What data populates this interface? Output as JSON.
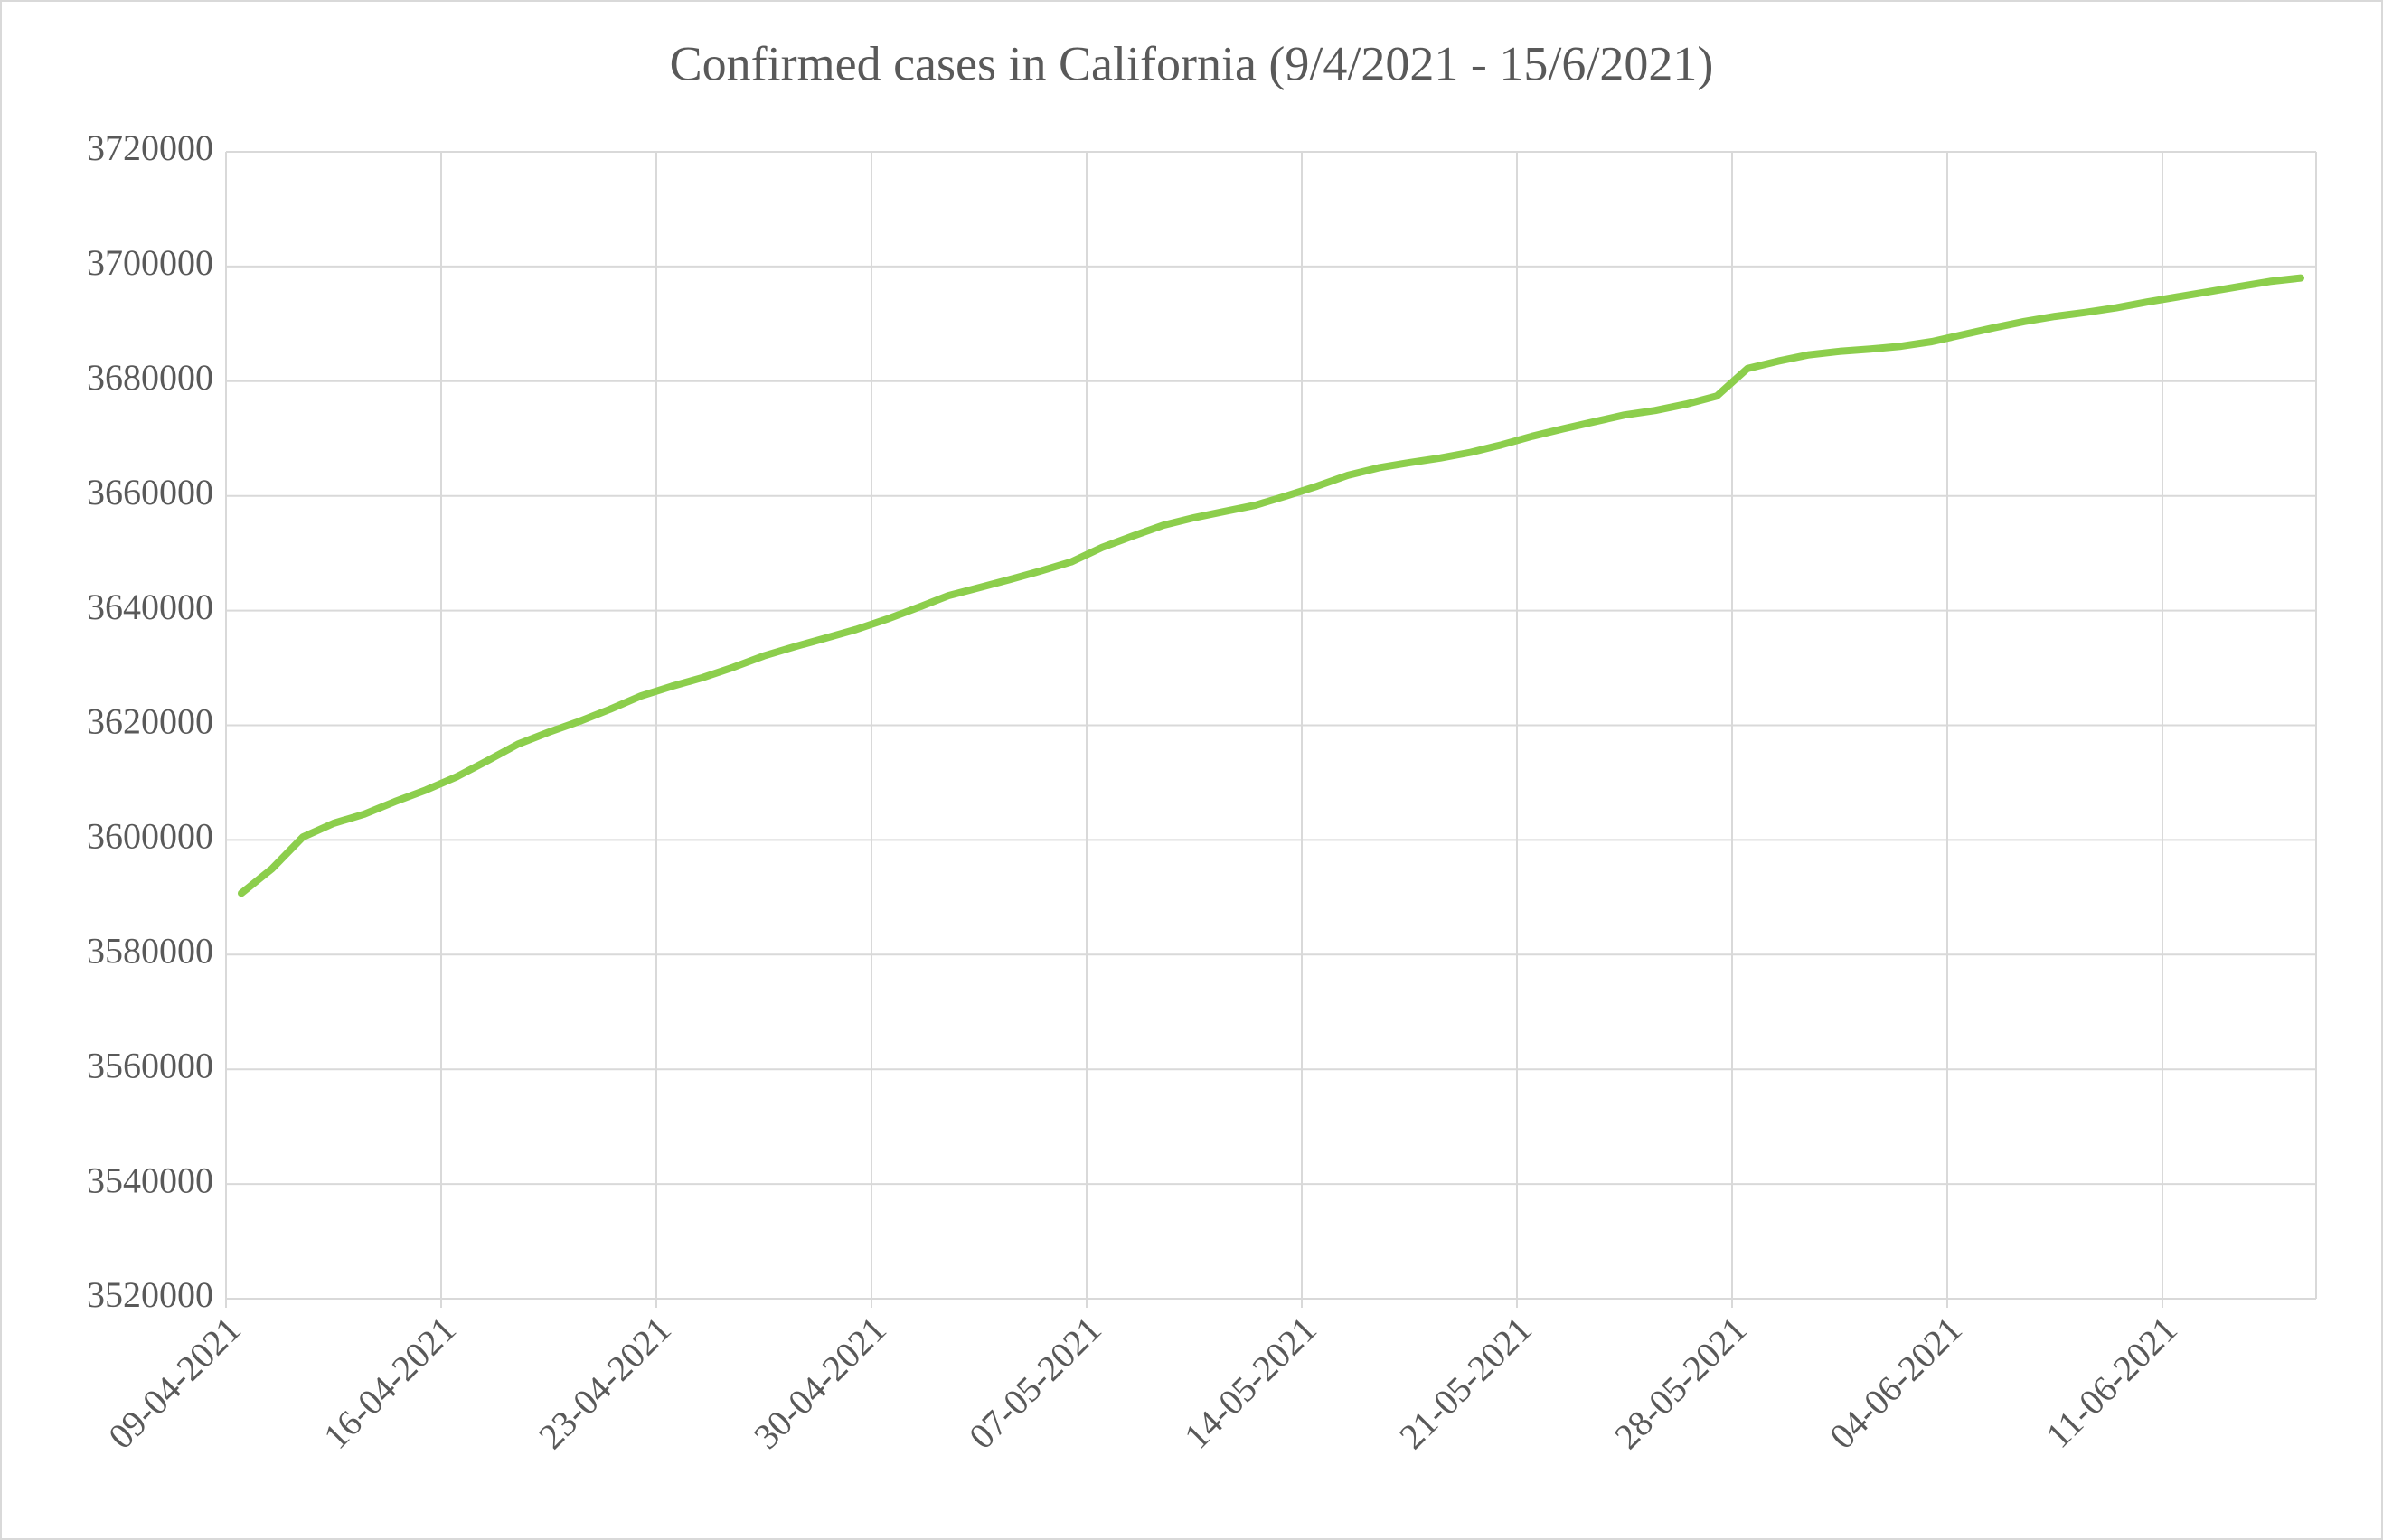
{
  "chart_data": {
    "type": "line",
    "title": "Confirmed cases in California (9/4/2021 - 15/6/2021)",
    "categories": [
      "09-04-2021",
      null,
      null,
      null,
      null,
      null,
      null,
      "16-04-2021",
      null,
      null,
      null,
      null,
      null,
      null,
      "23-04-2021",
      null,
      null,
      null,
      null,
      null,
      null,
      "30-04-2021",
      null,
      null,
      null,
      null,
      null,
      null,
      "07-05-2021",
      null,
      null,
      null,
      null,
      null,
      null,
      "14-05-2021",
      null,
      null,
      null,
      null,
      null,
      null,
      "21-05-2021",
      null,
      null,
      null,
      null,
      null,
      null,
      "28-05-2021",
      null,
      null,
      null,
      null,
      null,
      null,
      "04-06-2021",
      null,
      null,
      null,
      null,
      null,
      null,
      "11-06-2021",
      null,
      null,
      null,
      null
    ],
    "values": [
      3590700,
      3595000,
      3600500,
      3602900,
      3604500,
      3606700,
      3608700,
      3611000,
      3613800,
      3616700,
      3618800,
      3620700,
      3622800,
      3625100,
      3626800,
      3628300,
      3630100,
      3632100,
      3633700,
      3635200,
      3636700,
      3638500,
      3640500,
      3642600,
      3644000,
      3645400,
      3646900,
      3648500,
      3651000,
      3653000,
      3654900,
      3656200,
      3657300,
      3658400,
      3660000,
      3661700,
      3663600,
      3664900,
      3665800,
      3666600,
      3667600,
      3668900,
      3670400,
      3671700,
      3672900,
      3674100,
      3674900,
      3676000,
      3677400,
      3682200,
      3683500,
      3684600,
      3685200,
      3685600,
      3686100,
      3686900,
      3688100,
      3689300,
      3690400,
      3691300,
      3692000,
      3692800,
      3693800,
      3694700,
      3695600,
      3696500,
      3697400,
      3698000
    ],
    "color": "#8cce4c",
    "ylim": [
      3520000,
      3720000
    ],
    "yticks": [
      3520000,
      3540000,
      3560000,
      3580000,
      3600000,
      3620000,
      3640000,
      3660000,
      3680000,
      3700000,
      3720000
    ],
    "grid": true
  }
}
